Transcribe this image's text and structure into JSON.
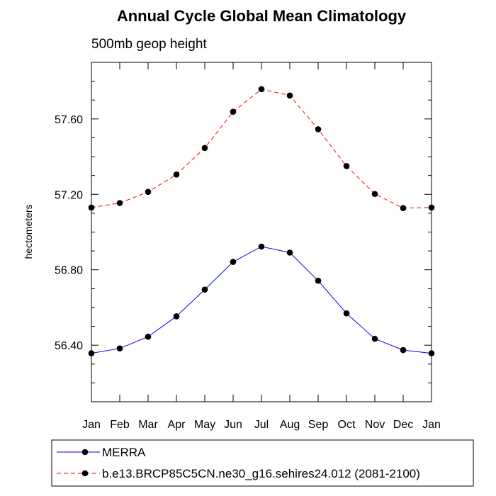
{
  "chart_data": {
    "type": "line",
    "title": "Annual Cycle Global Mean Climatology",
    "subtitle": "500mb geop height",
    "xlabel": "",
    "ylabel": "hectometers",
    "categories": [
      "Jan",
      "Feb",
      "Mar",
      "Apr",
      "May",
      "Jun",
      "Jul",
      "Aug",
      "Sep",
      "Oct",
      "Nov",
      "Dec",
      "Jan"
    ],
    "yticks": [
      56.4,
      56.8,
      57.2,
      57.6
    ],
    "ytick_labels": [
      "56.40",
      "56.80",
      "57.20",
      "57.60"
    ],
    "ylim": [
      56.1,
      57.9
    ],
    "grid": false,
    "legend_position": "bottom",
    "series": [
      {
        "name": "MERRA",
        "color": "#0000ff",
        "line_style": "solid",
        "marker": "filled-circle",
        "values": [
          56.357,
          56.383,
          56.445,
          56.553,
          56.695,
          56.842,
          56.923,
          56.891,
          56.742,
          56.569,
          56.434,
          56.374,
          56.357
        ]
      },
      {
        "name": "b.e13.BRCP85C5CN.ne30_g16.sehires24.012 (2081-2100)",
        "color": "#ff0000",
        "line_style": "dashed",
        "marker": "filled-circle",
        "values": [
          57.13,
          57.154,
          57.213,
          57.305,
          57.446,
          57.638,
          57.758,
          57.724,
          57.545,
          57.35,
          57.202,
          57.127,
          57.13
        ]
      }
    ]
  }
}
